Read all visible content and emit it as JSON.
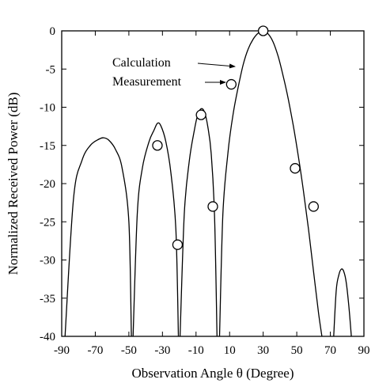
{
  "chart_data": {
    "type": "line",
    "xlabel": "Observation Angle θ (Degree)",
    "ylabel": "Normalized Received Power (dB)",
    "xlim": [
      -90,
      90
    ],
    "ylim": [
      -40,
      0
    ],
    "xticks": [
      -90,
      -70,
      -50,
      -30,
      -10,
      10,
      30,
      50,
      70,
      90
    ],
    "xtick_labels": [
      "-90",
      "-70",
      "-50",
      "-30",
      "-10",
      "10",
      "30",
      "50",
      "70",
      "90"
    ],
    "yticks": [
      0,
      -5,
      -10,
      -15,
      -20,
      -25,
      -30,
      -35,
      -40
    ],
    "ytick_labels": [
      "0",
      "-5",
      "-10",
      "-15",
      "-20",
      "-25",
      "-30",
      "-35",
      "-40"
    ],
    "grid": false,
    "series": [
      {
        "name": "Calculation",
        "style": "line",
        "lobes": [
          {
            "x": [
              -88,
              -83,
              -78,
              -73,
              -68,
              -65,
              -62,
              -58,
              -54,
              -50,
              -48.5
            ],
            "y": [
              -40,
              -22,
              -17,
              -15,
              -14.2,
              -14,
              -14.3,
              -15.5,
              -18,
              -25,
              -40
            ]
          },
          {
            "x": [
              -47.5,
              -45,
              -42,
              -38,
              -35,
              -33,
              -31,
              -28,
              -25,
              -22,
              -20.5
            ],
            "y": [
              -40,
              -24,
              -18,
              -14.5,
              -13,
              -12.1,
              -12.4,
              -14.5,
              -18.5,
              -26,
              -40
            ]
          },
          {
            "x": [
              -19.5,
              -17,
              -14,
              -11,
              -9,
              -7,
              -5,
              -3,
              -1,
              1,
              2.5
            ],
            "y": [
              -40,
              -24,
              -17,
              -13,
              -11,
              -10.2,
              -10.6,
              -12.5,
              -16,
              -24,
              -40
            ]
          },
          {
            "x": [
              4,
              6,
              9,
              12,
              15,
              18,
              21,
              24,
              27,
              30,
              33,
              36,
              39,
              42,
              45,
              48,
              51,
              54,
              57,
              60,
              63,
              65
            ],
            "y": [
              -40,
              -24,
              -16,
              -11,
              -7.5,
              -4.5,
              -2.4,
              -1.1,
              -0.3,
              0,
              -0.4,
              -1.5,
              -3.4,
              -6,
              -9,
              -12.5,
              -16.5,
              -21,
              -26,
              -31.5,
              -37,
              -40
            ]
          },
          {
            "x": [
              72,
              73.5,
              75,
              76.5,
              78,
              79.5,
              81,
              82.5
            ],
            "y": [
              -40,
              -34,
              -32,
              -31.2,
              -31.5,
              -33,
              -36,
              -40
            ]
          }
        ],
        "color": "#000000"
      },
      {
        "name": "Measurement",
        "style": "circles",
        "x": [
          -33,
          -21,
          -7,
          0,
          11,
          30,
          49,
          60
        ],
        "y": [
          -15,
          -28,
          -11,
          -23,
          -7,
          0,
          -18,
          -23
        ],
        "color": "#000000"
      }
    ],
    "annotations": [
      {
        "text": "Calculation",
        "target_series": "Calculation"
      },
      {
        "text": "Measurement",
        "target_series": "Measurement"
      }
    ]
  }
}
